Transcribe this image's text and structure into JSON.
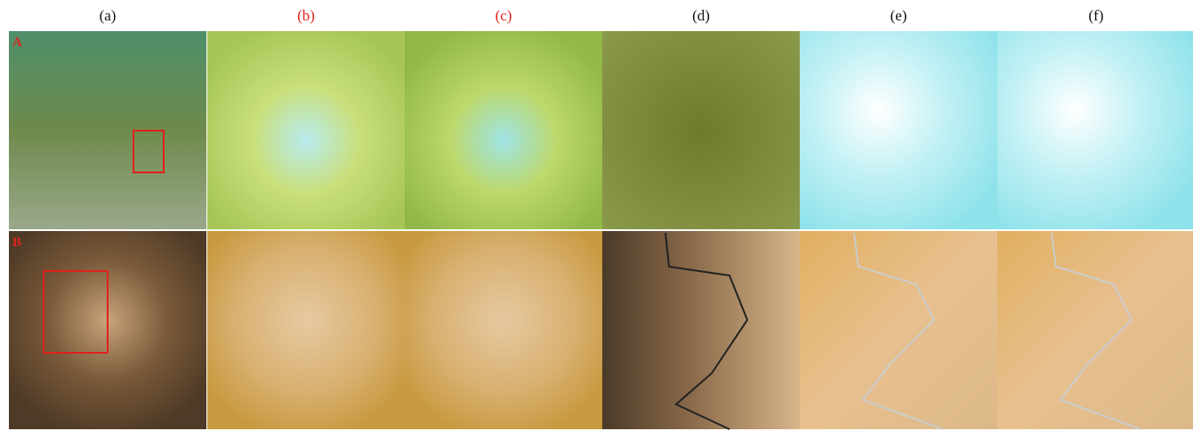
{
  "columns": [
    "(a)",
    "(b)",
    "(c)",
    "(d)",
    "(e)",
    "(f)"
  ],
  "rows": [
    "A",
    "B"
  ]
}
